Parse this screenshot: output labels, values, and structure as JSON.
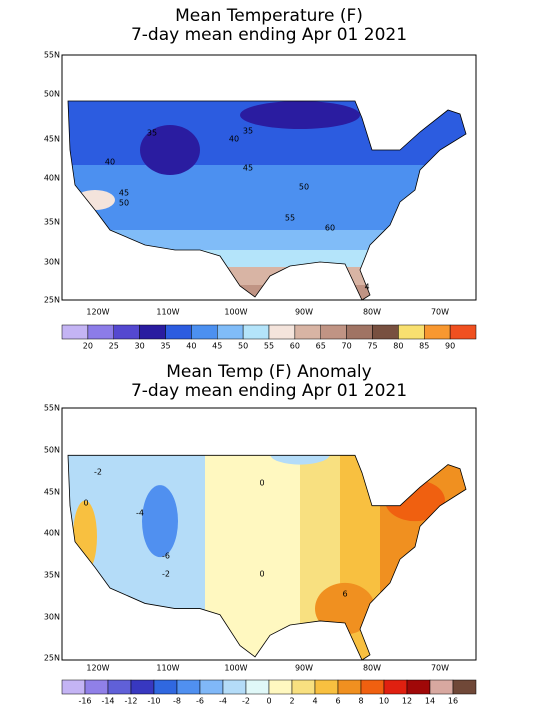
{
  "maps": [
    {
      "title": [
        "Mean Temperature (F)",
        "7-day mean ending Apr 01 2021"
      ],
      "lat_labels": [
        "55N",
        "50N",
        "45N",
        "40N",
        "35N",
        "30N",
        "25N"
      ],
      "lon_labels": [
        "120W",
        "110W",
        "100W",
        "90W",
        "80W",
        "70W"
      ],
      "contour_labels": [
        "35",
        "35",
        "40",
        "40",
        "45",
        "45",
        "50",
        "50",
        "55",
        "60",
        "4"
      ],
      "colorbar": {
        "colors": [
          "#c4b4f4",
          "#8c7ce8",
          "#5448d0",
          "#2a1ca0",
          "#2c5ce0",
          "#4c90f0",
          "#80bcf8",
          "#b4e4fa",
          "#f4e4dc",
          "#d8b4a4",
          "#c09484",
          "#a07464",
          "#785040",
          "#f8e070",
          "#f89830",
          "#f05020"
        ],
        "labels": [
          20,
          25,
          30,
          35,
          40,
          45,
          50,
          55,
          60,
          65,
          70,
          75,
          80,
          85,
          90
        ]
      }
    },
    {
      "title": [
        "Mean Temp (F) Anomaly",
        "7-day mean ending Apr 01 2021"
      ],
      "lat_labels": [
        "55N",
        "50N",
        "45N",
        "40N",
        "35N",
        "30N",
        "25N"
      ],
      "lon_labels": [
        "120W",
        "110W",
        "100W",
        "90W",
        "80W",
        "70W"
      ],
      "contour_labels": [
        "-2",
        "0",
        "0",
        "-4",
        "-6",
        "-2",
        "0",
        "6"
      ],
      "colorbar": {
        "colors": [
          "#c4b4f4",
          "#9080e8",
          "#6060d8",
          "#3838c0",
          "#3068e0",
          "#5090f0",
          "#80b8f8",
          "#b4dcf8",
          "#e0f8f8",
          "#fff8c0",
          "#f8e080",
          "#f8c040",
          "#f09020",
          "#f06010",
          "#e02010",
          "#a00808",
          "#d8a8a0",
          "#704838"
        ],
        "labels": [
          -16,
          -14,
          -12,
          -10,
          -8,
          -6,
          -4,
          -2,
          0,
          2,
          4,
          6,
          8,
          10,
          12,
          14,
          16
        ]
      }
    }
  ]
}
